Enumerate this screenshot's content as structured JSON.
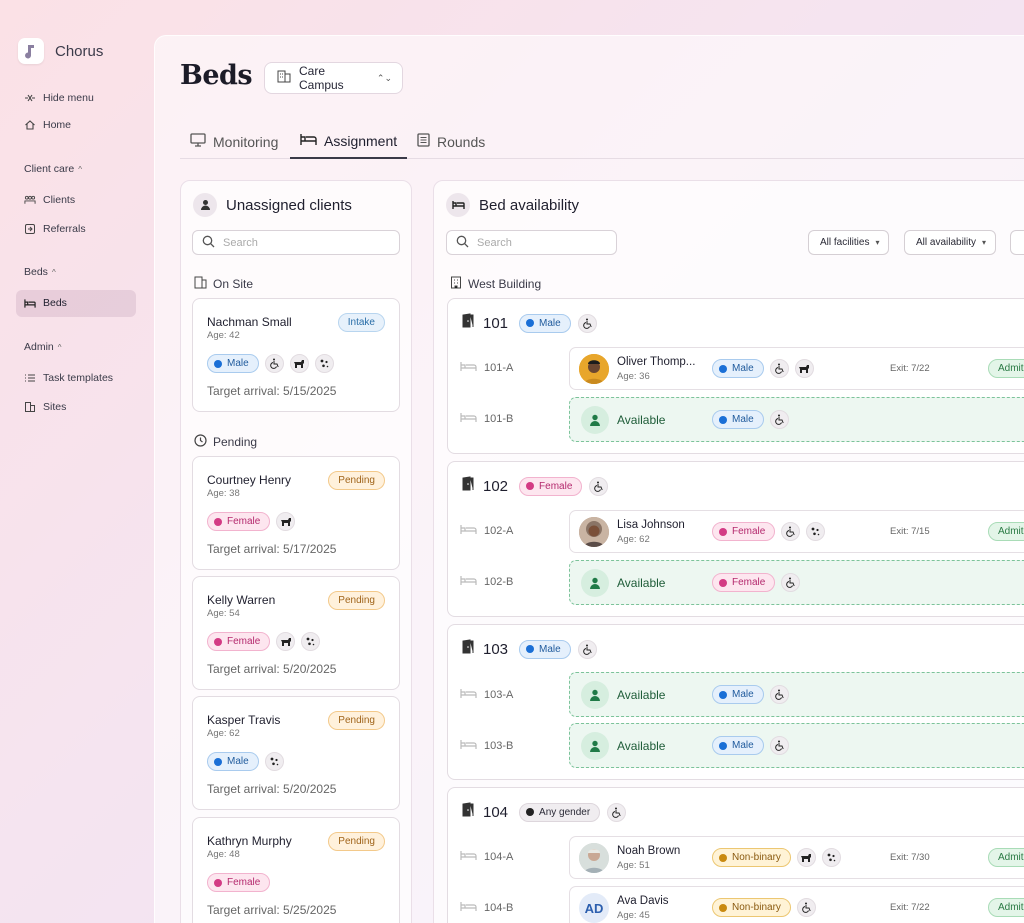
{
  "app": {
    "name": "Chorus"
  },
  "sidebar": {
    "hide_menu": "Hide menu",
    "home": "Home",
    "client_care": "Client care",
    "clients": "Clients",
    "referrals": "Referrals",
    "beds_section": "Beds",
    "beds": "Beds",
    "admin": "Admin",
    "task_templates": "Task templates",
    "sites": "Sites"
  },
  "header": {
    "title": "Beds",
    "campus": "Care Campus"
  },
  "tabs": [
    {
      "label": "Monitoring",
      "active": false
    },
    {
      "label": "Assignment",
      "active": true
    },
    {
      "label": "Rounds",
      "active": false
    }
  ],
  "unassigned": {
    "title": "Unassigned clients",
    "search_placeholder": "Search",
    "on_site_label": "On Site",
    "pending_label": "Pending",
    "on_site": [
      {
        "name": "Nachman Small",
        "age": "Age: 42",
        "status": "Intake",
        "gender": "Male",
        "icons": [
          "wheelchair-icon",
          "dog-icon",
          "sparkle-icon"
        ],
        "arrival": "Target arrival: 5/15/2025"
      }
    ],
    "pending": [
      {
        "name": "Courtney Henry",
        "age": "Age: 38",
        "status": "Pending",
        "gender": "Female",
        "icons": [
          "dog-icon"
        ],
        "arrival": "Target arrival: 5/17/2025"
      },
      {
        "name": "Kelly Warren",
        "age": "Age: 54",
        "status": "Pending",
        "gender": "Female",
        "icons": [
          "dog-icon",
          "sparkle-icon"
        ],
        "arrival": "Target arrival: 5/20/2025"
      },
      {
        "name": "Kasper Travis",
        "age": "Age: 62",
        "status": "Pending",
        "gender": "Male",
        "icons": [
          "sparkle-icon"
        ],
        "arrival": "Target arrival: 5/20/2025"
      },
      {
        "name": "Kathryn Murphy",
        "age": "Age: 48",
        "status": "Pending",
        "gender": "Female",
        "icons": [],
        "arrival": "Target arrival: 5/25/2025"
      }
    ]
  },
  "availability": {
    "title": "Bed availability",
    "search_placeholder": "Search",
    "filters": [
      "All facilities",
      "All availability"
    ],
    "building": "West Building",
    "available_label": "Available",
    "rooms": [
      {
        "number": "101",
        "gender": "Male",
        "beds": [
          {
            "label": "101-A",
            "occupant": "Oliver Thomp...",
            "age": "Age: 36",
            "gender": "Male",
            "icons": [
              "wheelchair-icon",
              "dog-icon"
            ],
            "exit": "Exit: 7/22",
            "status": "Admit"
          },
          {
            "label": "101-B",
            "available": true,
            "gender": "Male",
            "icons": [
              "wheelchair-icon"
            ]
          }
        ]
      },
      {
        "number": "102",
        "gender": "Female",
        "beds": [
          {
            "label": "102-A",
            "occupant": "Lisa Johnson",
            "age": "Age: 62",
            "gender": "Female",
            "icons": [
              "wheelchair-icon",
              "sparkle-icon"
            ],
            "exit": "Exit: 7/15",
            "status": "Admit"
          },
          {
            "label": "102-B",
            "available": true,
            "gender": "Female",
            "icons": [
              "wheelchair-icon"
            ]
          }
        ]
      },
      {
        "number": "103",
        "gender": "Male",
        "beds": [
          {
            "label": "103-A",
            "available": true,
            "gender": "Male",
            "icons": [
              "wheelchair-icon"
            ]
          },
          {
            "label": "103-B",
            "available": true,
            "gender": "Male",
            "icons": [
              "wheelchair-icon"
            ]
          }
        ]
      },
      {
        "number": "104",
        "gender": "Any gender",
        "beds": [
          {
            "label": "104-A",
            "occupant": "Noah Brown",
            "age": "Age: 51",
            "gender": "Non-binary",
            "icons": [
              "dog-icon",
              "sparkle-icon"
            ],
            "exit": "Exit: 7/30",
            "status": "Admit"
          },
          {
            "label": "104-B",
            "occupant": "Ava Davis",
            "initials": "AD",
            "age": "Age: 45",
            "gender": "Non-binary",
            "icons": [
              "wheelchair-icon"
            ],
            "exit": "Exit: 7/22",
            "status": "Admit"
          }
        ]
      }
    ]
  },
  "colors": {
    "male": "#1a6fd6",
    "female": "#d33b84",
    "nonbinary": "#c98a10",
    "available": "#2a8a52"
  }
}
